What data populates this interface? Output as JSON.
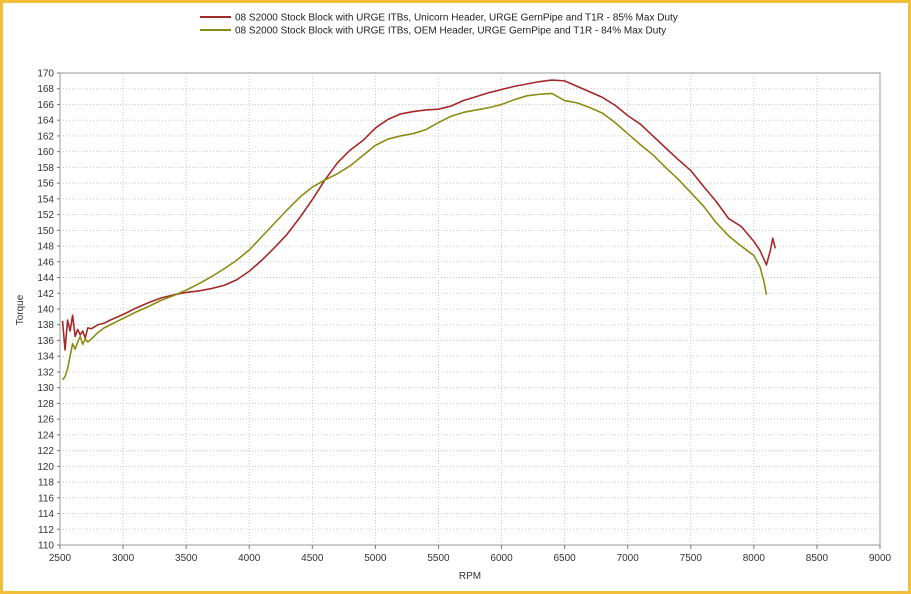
{
  "chart_data": {
    "type": "line",
    "xlabel": "RPM",
    "ylabel": "Torque",
    "xlim": [
      2500,
      9000
    ],
    "ylim": [
      110,
      170
    ],
    "xticks": [
      2500,
      3000,
      3500,
      4000,
      4500,
      5000,
      5500,
      6000,
      6500,
      7000,
      7500,
      8000,
      8500,
      9000
    ],
    "yticks": [
      110,
      112,
      114,
      116,
      118,
      120,
      122,
      124,
      126,
      128,
      130,
      132,
      134,
      136,
      138,
      140,
      142,
      144,
      146,
      148,
      150,
      152,
      154,
      156,
      158,
      160,
      162,
      164,
      166,
      168,
      170
    ],
    "grid": true,
    "grid_style": "dotted",
    "legend_position": "top-center",
    "series": [
      {
        "name": "08 S2000 Stock Block with URGE ITBs, Unicorn Header, URGE GernPipe and T1R - 85% Max Duty",
        "color": "#a32a2a",
        "x": [
          2520,
          2540,
          2560,
          2580,
          2600,
          2620,
          2640,
          2660,
          2680,
          2700,
          2720,
          2750,
          2800,
          2850,
          2900,
          3000,
          3100,
          3200,
          3300,
          3400,
          3500,
          3600,
          3700,
          3800,
          3900,
          4000,
          4100,
          4200,
          4300,
          4400,
          4500,
          4600,
          4700,
          4800,
          4900,
          5000,
          5100,
          5200,
          5300,
          5400,
          5500,
          5600,
          5700,
          5800,
          5900,
          6000,
          6100,
          6200,
          6300,
          6400,
          6500,
          6600,
          6700,
          6800,
          6900,
          7000,
          7100,
          7200,
          7300,
          7400,
          7500,
          7600,
          7700,
          7800,
          7900,
          8000,
          8050,
          8100,
          8130,
          8150,
          8170
        ],
        "y": [
          138.5,
          134.8,
          138.6,
          137.2,
          139.2,
          136.5,
          137.4,
          136.7,
          137.2,
          136.3,
          137.6,
          137.5,
          138.0,
          138.2,
          138.6,
          139.3,
          140.1,
          140.8,
          141.4,
          141.8,
          142.1,
          142.3,
          142.6,
          143.0,
          143.7,
          144.8,
          146.2,
          147.8,
          149.5,
          151.6,
          153.9,
          156.4,
          158.6,
          160.2,
          161.4,
          163.0,
          164.1,
          164.8,
          165.1,
          165.3,
          165.4,
          165.8,
          166.5,
          167.0,
          167.5,
          167.9,
          168.3,
          168.6,
          168.9,
          169.1,
          169.0,
          168.3,
          167.6,
          166.9,
          165.9,
          164.6,
          163.5,
          162.0,
          160.5,
          159.0,
          157.6,
          155.6,
          153.7,
          151.5,
          150.5,
          148.6,
          147.4,
          145.6,
          147.4,
          149.0,
          147.7
        ]
      },
      {
        "name": "08 S2000 Stock Block with URGE ITBs, OEM Header, URGE GernPipe and T1R - 84% Max Duty",
        "color": "#8c8c14",
        "x": [
          2520,
          2540,
          2560,
          2580,
          2600,
          2620,
          2640,
          2660,
          2680,
          2700,
          2720,
          2750,
          2800,
          2850,
          2900,
          3000,
          3100,
          3200,
          3300,
          3400,
          3500,
          3600,
          3700,
          3800,
          3900,
          4000,
          4100,
          4200,
          4300,
          4400,
          4500,
          4600,
          4700,
          4800,
          4900,
          5000,
          5100,
          5200,
          5300,
          5400,
          5500,
          5600,
          5700,
          5800,
          5900,
          6000,
          6100,
          6200,
          6300,
          6400,
          6500,
          6600,
          6700,
          6800,
          6900,
          7000,
          7100,
          7200,
          7300,
          7400,
          7500,
          7600,
          7700,
          7800,
          7900,
          8000,
          8050,
          8080,
          8100
        ],
        "y": [
          131.0,
          131.4,
          132.4,
          134.0,
          135.6,
          134.9,
          135.8,
          136.5,
          135.5,
          136.2,
          135.8,
          136.2,
          137.0,
          137.6,
          138.0,
          138.8,
          139.6,
          140.3,
          141.1,
          141.7,
          142.4,
          143.2,
          144.1,
          145.1,
          146.2,
          147.5,
          149.2,
          150.9,
          152.6,
          154.2,
          155.5,
          156.4,
          157.2,
          158.2,
          159.5,
          160.8,
          161.6,
          162.0,
          162.3,
          162.8,
          163.7,
          164.5,
          165.0,
          165.3,
          165.6,
          166.0,
          166.6,
          167.1,
          167.3,
          167.4,
          166.5,
          166.2,
          165.6,
          164.9,
          163.7,
          162.3,
          160.9,
          159.6,
          158.0,
          156.5,
          154.8,
          153.1,
          151.0,
          149.3,
          148.0,
          146.8,
          145.3,
          143.5,
          141.8
        ]
      }
    ]
  }
}
